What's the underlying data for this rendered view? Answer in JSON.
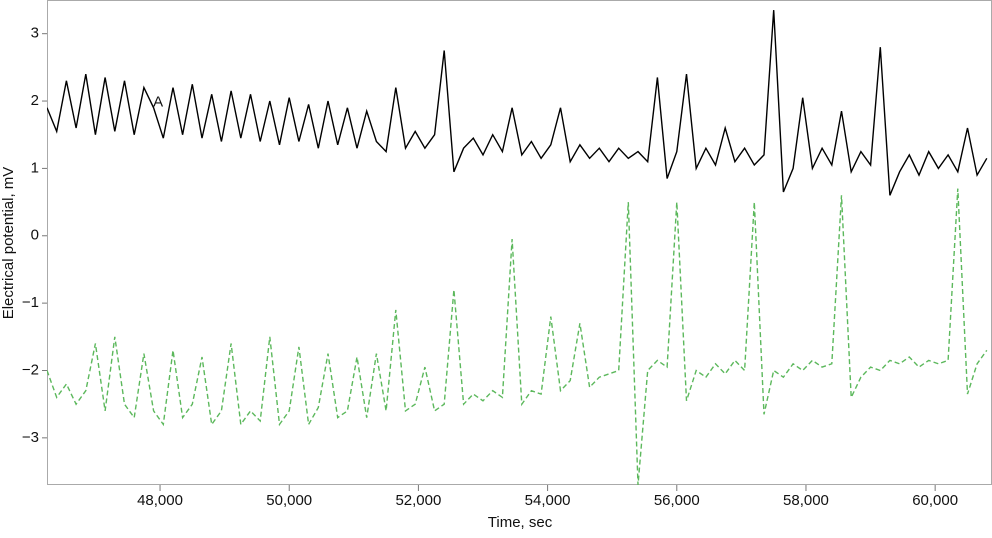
{
  "chart_data": {
    "type": "line",
    "xlabel": "Time, sec",
    "ylabel": "Electrical potential, mV",
    "annotations": [
      {
        "text": "A",
        "x": 47970,
        "y": 1.98
      }
    ],
    "xlim": [
      46250,
      60880
    ],
    "ylim": [
      -3.7,
      3.5
    ],
    "xticks": [
      {
        "value": 48000,
        "label": "48,000"
      },
      {
        "value": 50000,
        "label": "50,000"
      },
      {
        "value": 52000,
        "label": "52,000"
      },
      {
        "value": 54000,
        "label": "54,000"
      },
      {
        "value": 56000,
        "label": "56,000"
      },
      {
        "value": 58000,
        "label": "58,000"
      },
      {
        "value": 60000,
        "label": "60,000"
      }
    ],
    "yticks": [
      {
        "value": -3,
        "label": "−3"
      },
      {
        "value": -2,
        "label": "−2"
      },
      {
        "value": -1,
        "label": "−1"
      },
      0,
      1,
      2,
      3
    ],
    "grid": false,
    "x": [
      46250,
      46400,
      46550,
      46700,
      46850,
      47000,
      47150,
      47300,
      47450,
      47600,
      47750,
      47900,
      48050,
      48200,
      48350,
      48500,
      48650,
      48800,
      48950,
      49100,
      49250,
      49400,
      49550,
      49700,
      49850,
      50000,
      50150,
      50300,
      50450,
      50600,
      50750,
      50900,
      51050,
      51200,
      51350,
      51500,
      51650,
      51800,
      51950,
      52100,
      52250,
      52400,
      52550,
      52700,
      52850,
      53000,
      53150,
      53300,
      53450,
      53600,
      53750,
      53900,
      54050,
      54200,
      54350,
      54500,
      54650,
      54800,
      54950,
      55100,
      55250,
      55400,
      55550,
      55700,
      55850,
      56000,
      56150,
      56300,
      56450,
      56600,
      56750,
      56900,
      57050,
      57200,
      57350,
      57500,
      57650,
      57800,
      57950,
      58100,
      58250,
      58400,
      58550,
      58700,
      58850,
      59000,
      59150,
      59300,
      59450,
      59600,
      59750,
      59900,
      60050,
      60200,
      60350,
      60500,
      60650,
      60800
    ],
    "series": [
      {
        "color": "#000000",
        "dashed": false,
        "values": [
          1.9,
          1.55,
          2.3,
          1.6,
          2.4,
          1.5,
          2.35,
          1.55,
          2.3,
          1.5,
          2.2,
          1.9,
          1.45,
          2.2,
          1.5,
          2.25,
          1.45,
          2.1,
          1.4,
          2.15,
          1.45,
          2.1,
          1.4,
          2.0,
          1.35,
          2.05,
          1.4,
          1.95,
          1.3,
          2.0,
          1.35,
          1.9,
          1.3,
          1.85,
          1.4,
          1.25,
          2.2,
          1.3,
          1.55,
          1.3,
          1.5,
          2.75,
          0.95,
          1.3,
          1.45,
          1.2,
          1.5,
          1.25,
          1.9,
          1.2,
          1.4,
          1.15,
          1.35,
          1.9,
          1.1,
          1.35,
          1.15,
          1.3,
          1.1,
          1.3,
          1.15,
          1.25,
          1.1,
          2.35,
          0.85,
          1.25,
          2.4,
          1.0,
          1.3,
          1.05,
          1.6,
          1.1,
          1.3,
          1.05,
          1.2,
          3.35,
          0.65,
          1.0,
          2.05,
          1.0,
          1.3,
          1.05,
          1.85,
          0.95,
          1.25,
          1.05,
          2.8,
          0.6,
          0.95,
          1.2,
          0.9,
          1.25,
          1.0,
          1.2,
          0.95,
          1.6,
          0.9,
          1.15
        ]
      },
      {
        "color": "#5cb85c",
        "dashed": true,
        "values": [
          -2.0,
          -2.4,
          -2.2,
          -2.5,
          -2.3,
          -1.6,
          -2.6,
          -1.5,
          -2.5,
          -2.7,
          -1.75,
          -2.6,
          -2.8,
          -1.7,
          -2.7,
          -2.5,
          -1.8,
          -2.8,
          -2.6,
          -1.6,
          -2.8,
          -2.6,
          -2.75,
          -1.5,
          -2.8,
          -2.6,
          -1.65,
          -2.8,
          -2.55,
          -1.75,
          -2.7,
          -2.6,
          -1.8,
          -2.7,
          -1.75,
          -2.6,
          -1.1,
          -2.6,
          -2.5,
          -1.95,
          -2.6,
          -2.5,
          -0.8,
          -2.5,
          -2.35,
          -2.45,
          -2.3,
          -2.4,
          -0.05,
          -2.5,
          -2.3,
          -2.35,
          -1.2,
          -2.3,
          -2.15,
          -1.3,
          -2.25,
          -2.1,
          -2.05,
          -2.0,
          0.5,
          -3.7,
          -2.0,
          -1.85,
          -1.95,
          0.5,
          -2.45,
          -2.0,
          -2.1,
          -1.9,
          -2.05,
          -1.85,
          -2.0,
          0.5,
          -2.65,
          -2.0,
          -2.1,
          -1.9,
          -2.0,
          -1.85,
          -1.95,
          -1.9,
          0.6,
          -2.4,
          -2.1,
          -1.95,
          -2.0,
          -1.85,
          -1.9,
          -1.8,
          -1.95,
          -1.85,
          -1.9,
          -1.85,
          0.7,
          -2.35,
          -1.9,
          -1.7
        ]
      }
    ]
  }
}
